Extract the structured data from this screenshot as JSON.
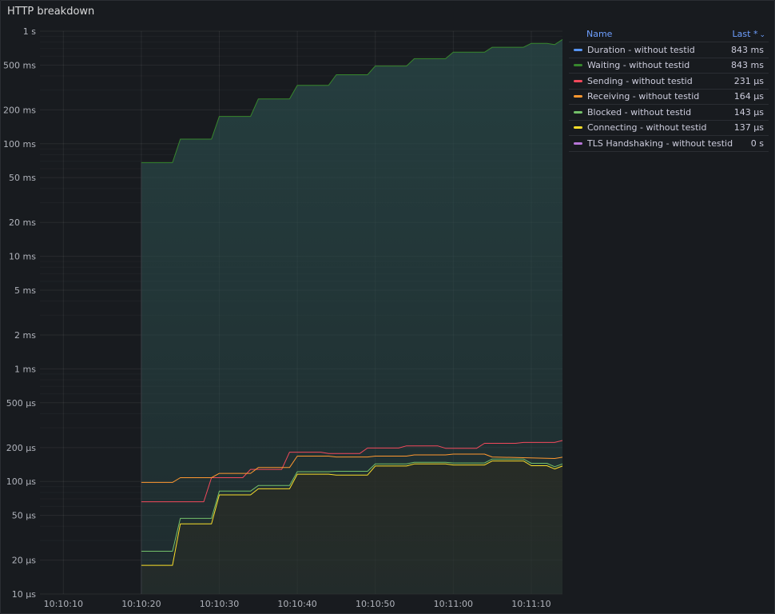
{
  "panel": {
    "title": "HTTP breakdown"
  },
  "legend": {
    "header_name": "Name",
    "header_value": "Last *",
    "sort_icon": "chevron-down-icon",
    "rows": [
      {
        "name": "Duration - without testid",
        "value": "843 ms",
        "color": "#5794f2"
      },
      {
        "name": "Waiting - without testid",
        "value": "843 ms",
        "color": "#37872d"
      },
      {
        "name": "Sending - without testid",
        "value": "231 µs",
        "color": "#f2495c"
      },
      {
        "name": "Receiving - without testid",
        "value": "164 µs",
        "color": "#ff9830"
      },
      {
        "name": "Blocked - without testid",
        "value": "143 µs",
        "color": "#73bf69"
      },
      {
        "name": "Connecting - without testid",
        "value": "137 µs",
        "color": "#fade2a"
      },
      {
        "name": "TLS Handshaking - without testid",
        "value": "0 s",
        "color": "#b877d9"
      }
    ]
  },
  "chart_data": {
    "type": "line",
    "yscale": "log",
    "yunit": "seconds",
    "ylim": [
      1e-05,
      1
    ],
    "xlim": [
      "10:10:07",
      "10:11:14"
    ],
    "y_ticks": [
      {
        "value": 1,
        "label": "1 s"
      },
      {
        "value": 0.5,
        "label": "500 ms"
      },
      {
        "value": 0.2,
        "label": "200 ms"
      },
      {
        "value": 0.1,
        "label": "100 ms"
      },
      {
        "value": 0.05,
        "label": "50 ms"
      },
      {
        "value": 0.02,
        "label": "20 ms"
      },
      {
        "value": 0.01,
        "label": "10 ms"
      },
      {
        "value": 0.005,
        "label": "5 ms"
      },
      {
        "value": 0.002,
        "label": "2 ms"
      },
      {
        "value": 0.001,
        "label": "1 ms"
      },
      {
        "value": 0.0005,
        "label": "500 µs"
      },
      {
        "value": 0.0002,
        "label": "200 µs"
      },
      {
        "value": 0.0001,
        "label": "100 µs"
      },
      {
        "value": 5e-05,
        "label": "50 µs"
      },
      {
        "value": 2e-05,
        "label": "20 µs"
      },
      {
        "value": 1e-05,
        "label": "10 µs"
      }
    ],
    "x_ticks": [
      "10:10:10",
      "10:10:20",
      "10:10:30",
      "10:10:40",
      "10:10:50",
      "10:11:00",
      "10:11:10"
    ],
    "series": [
      {
        "name": "Waiting - without testid",
        "color": "#37872d",
        "fill": "#2a4a4a",
        "points": [
          [
            "10:10:20",
            0.068
          ],
          [
            "10:10:24",
            0.068
          ],
          [
            "10:10:25",
            0.11
          ],
          [
            "10:10:29",
            0.11
          ],
          [
            "10:10:30",
            0.175
          ],
          [
            "10:10:34",
            0.175
          ],
          [
            "10:10:35",
            0.25
          ],
          [
            "10:10:39",
            0.25
          ],
          [
            "10:10:40",
            0.33
          ],
          [
            "10:10:44",
            0.33
          ],
          [
            "10:10:45",
            0.41
          ],
          [
            "10:10:49",
            0.41
          ],
          [
            "10:10:50",
            0.49
          ],
          [
            "10:10:54",
            0.49
          ],
          [
            "10:10:55",
            0.57
          ],
          [
            "10:10:59",
            0.57
          ],
          [
            "10:11:00",
            0.65
          ],
          [
            "10:11:04",
            0.65
          ],
          [
            "10:11:05",
            0.72
          ],
          [
            "10:11:09",
            0.72
          ],
          [
            "10:11:10",
            0.78
          ],
          [
            "10:11:12",
            0.78
          ],
          [
            "10:11:13",
            0.76
          ],
          [
            "10:11:14",
            0.843
          ]
        ]
      },
      {
        "name": "Sending - without testid",
        "color": "#f2495c",
        "points": [
          [
            "10:10:20",
            6.6e-05
          ],
          [
            "10:10:27",
            6.6e-05
          ],
          [
            "10:10:28",
            6.6e-05
          ],
          [
            "10:10:29",
            0.000108
          ],
          [
            "10:10:33",
            0.000108
          ],
          [
            "10:10:34",
            0.000128
          ],
          [
            "10:10:38",
            0.000128
          ],
          [
            "10:10:39",
            0.000182
          ],
          [
            "10:10:43",
            0.000182
          ],
          [
            "10:10:44",
            0.000177
          ],
          [
            "10:10:48",
            0.000177
          ],
          [
            "10:10:49",
            0.000198
          ],
          [
            "10:10:53",
            0.000198
          ],
          [
            "10:10:54",
            0.000207
          ],
          [
            "10:10:58",
            0.000207
          ],
          [
            "10:10:59",
            0.000197
          ],
          [
            "10:11:03",
            0.000197
          ],
          [
            "10:11:04",
            0.000218
          ],
          [
            "10:11:08",
            0.000218
          ],
          [
            "10:11:09",
            0.000222
          ],
          [
            "10:11:13",
            0.000222
          ],
          [
            "10:11:14",
            0.000231
          ]
        ]
      },
      {
        "name": "Receiving - without testid",
        "color": "#ff9830",
        "points": [
          [
            "10:10:20",
            9.8e-05
          ],
          [
            "10:10:24",
            9.8e-05
          ],
          [
            "10:10:25",
            0.000108
          ],
          [
            "10:10:29",
            0.000108
          ],
          [
            "10:10:30",
            0.000118
          ],
          [
            "10:10:34",
            0.000118
          ],
          [
            "10:10:35",
            0.000133
          ],
          [
            "10:10:39",
            0.000133
          ],
          [
            "10:10:40",
            0.000168
          ],
          [
            "10:10:44",
            0.000168
          ],
          [
            "10:10:45",
            0.000165
          ],
          [
            "10:10:49",
            0.000165
          ],
          [
            "10:10:50",
            0.000168
          ],
          [
            "10:10:54",
            0.000168
          ],
          [
            "10:10:55",
            0.000172
          ],
          [
            "10:10:59",
            0.000172
          ],
          [
            "10:11:00",
            0.000175
          ],
          [
            "10:11:04",
            0.000175
          ],
          [
            "10:11:05",
            0.000165
          ],
          [
            "10:11:13",
            0.00016
          ],
          [
            "10:11:14",
            0.000164
          ]
        ]
      },
      {
        "name": "Blocked - without testid",
        "color": "#73bf69",
        "points": [
          [
            "10:10:20",
            2.4e-05
          ],
          [
            "10:10:24",
            2.4e-05
          ],
          [
            "10:10:25",
            4.7e-05
          ],
          [
            "10:10:29",
            4.7e-05
          ],
          [
            "10:10:30",
            8.2e-05
          ],
          [
            "10:10:34",
            8.2e-05
          ],
          [
            "10:10:35",
            9.2e-05
          ],
          [
            "10:10:39",
            9.2e-05
          ],
          [
            "10:10:40",
            0.000122
          ],
          [
            "10:10:44",
            0.000122
          ],
          [
            "10:10:45",
            0.000123
          ],
          [
            "10:10:49",
            0.000123
          ],
          [
            "10:10:50",
            0.000143
          ],
          [
            "10:10:54",
            0.000143
          ],
          [
            "10:10:55",
            0.000148
          ],
          [
            "10:10:59",
            0.000148
          ],
          [
            "10:11:00",
            0.000146
          ],
          [
            "10:11:04",
            0.000146
          ],
          [
            "10:11:05",
            0.000158
          ],
          [
            "10:11:09",
            0.000158
          ],
          [
            "10:11:10",
            0.000145
          ],
          [
            "10:11:12",
            0.000145
          ],
          [
            "10:11:13",
            0.000135
          ],
          [
            "10:11:14",
            0.000143
          ]
        ]
      },
      {
        "name": "Connecting - without testid",
        "color": "#fade2a",
        "fill": "#2a2a22",
        "points": [
          [
            "10:10:20",
            1.8e-05
          ],
          [
            "10:10:24",
            1.8e-05
          ],
          [
            "10:10:25",
            4.2e-05
          ],
          [
            "10:10:29",
            4.2e-05
          ],
          [
            "10:10:30",
            7.6e-05
          ],
          [
            "10:10:34",
            7.6e-05
          ],
          [
            "10:10:35",
            8.6e-05
          ],
          [
            "10:10:39",
            8.6e-05
          ],
          [
            "10:10:40",
            0.000116
          ],
          [
            "10:10:44",
            0.000116
          ],
          [
            "10:10:45",
            0.000114
          ],
          [
            "10:10:49",
            0.000114
          ],
          [
            "10:10:50",
            0.000137
          ],
          [
            "10:10:54",
            0.000137
          ],
          [
            "10:10:55",
            0.000143
          ],
          [
            "10:10:59",
            0.000143
          ],
          [
            "10:11:00",
            0.00014
          ],
          [
            "10:11:04",
            0.00014
          ],
          [
            "10:11:05",
            0.000152
          ],
          [
            "10:11:09",
            0.000152
          ],
          [
            "10:11:10",
            0.000138
          ],
          [
            "10:11:12",
            0.000138
          ],
          [
            "10:11:13",
            0.000129
          ],
          [
            "10:11:14",
            0.000137
          ]
        ]
      }
    ]
  }
}
